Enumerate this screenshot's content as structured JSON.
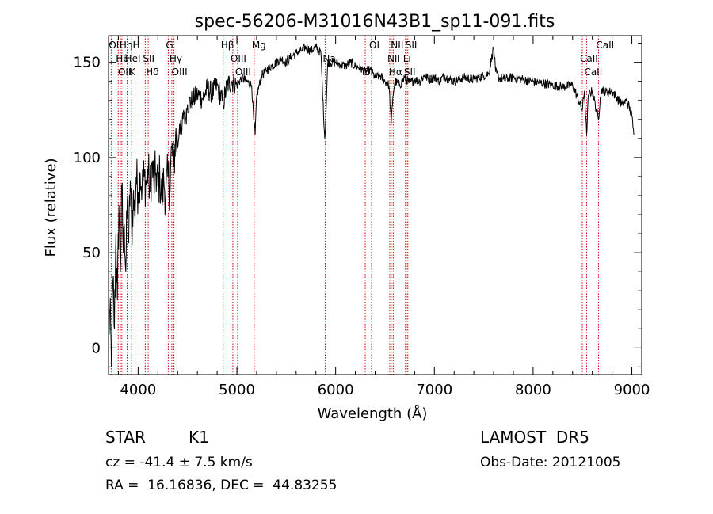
{
  "chart_data": {
    "type": "line",
    "title": "spec-56206-M31016N43B1_sp11-091.fits",
    "xlabel": "Wavelength (Å)",
    "ylabel": "Flux (relative)",
    "xlim": [
      3700,
      9100
    ],
    "ylim": [
      -14,
      164
    ],
    "x_ticks": [
      4000,
      5000,
      6000,
      7000,
      8000,
      9000
    ],
    "y_ticks": [
      0,
      50,
      100,
      150
    ],
    "x_tick_labels": [
      "4000",
      "5000",
      "6000",
      "7000",
      "8000",
      "9000"
    ],
    "y_tick_labels": [
      "0",
      "50",
      "100",
      "150"
    ],
    "grid": false,
    "series": [
      {
        "points": [
          [
            3700,
            5
          ],
          [
            3715,
            20
          ],
          [
            3730,
            -10
          ],
          [
            3745,
            35
          ],
          [
            3760,
            10
          ],
          [
            3775,
            60
          ],
          [
            3790,
            25
          ],
          [
            3805,
            75
          ],
          [
            3820,
            40
          ],
          [
            3835,
            85
          ],
          [
            3850,
            50
          ],
          [
            3860,
            65
          ],
          [
            3875,
            40
          ],
          [
            3890,
            78
          ],
          [
            3905,
            55
          ],
          [
            3920,
            88
          ],
          [
            3935,
            60
          ],
          [
            3950,
            80
          ],
          [
            3965,
            70
          ],
          [
            3980,
            90
          ],
          [
            4000,
            82
          ],
          [
            4020,
            92
          ],
          [
            4040,
            84
          ],
          [
            4060,
            90
          ],
          [
            4080,
            86
          ],
          [
            4100,
            94
          ],
          [
            4120,
            82
          ],
          [
            4140,
            96
          ],
          [
            4160,
            86
          ],
          [
            4180,
            92
          ],
          [
            4200,
            85
          ],
          [
            4220,
            90
          ],
          [
            4240,
            78
          ],
          [
            4260,
            88
          ],
          [
            4280,
            80
          ],
          [
            4300,
            90
          ],
          [
            4320,
            85
          ],
          [
            4340,
            105
          ],
          [
            4360,
            95
          ],
          [
            4380,
            112
          ],
          [
            4400,
            105
          ],
          [
            4420,
            118
          ],
          [
            4440,
            112
          ],
          [
            4460,
            125
          ],
          [
            4480,
            120
          ],
          [
            4500,
            128
          ],
          [
            4550,
            130
          ],
          [
            4600,
            133
          ],
          [
            4650,
            131
          ],
          [
            4700,
            136
          ],
          [
            4750,
            134
          ],
          [
            4800,
            138
          ],
          [
            4860,
            128
          ],
          [
            4900,
            138
          ],
          [
            4950,
            140
          ],
          [
            5000,
            138
          ],
          [
            5050,
            142
          ],
          [
            5100,
            140
          ],
          [
            5150,
            138
          ],
          [
            5170,
            120
          ],
          [
            5185,
            112
          ],
          [
            5200,
            132
          ],
          [
            5250,
            143
          ],
          [
            5300,
            146
          ],
          [
            5350,
            148
          ],
          [
            5400,
            150
          ],
          [
            5450,
            152
          ],
          [
            5500,
            150
          ],
          [
            5550,
            153
          ],
          [
            5600,
            155
          ],
          [
            5650,
            156
          ],
          [
            5700,
            158
          ],
          [
            5750,
            156
          ],
          [
            5800,
            158
          ],
          [
            5850,
            155
          ],
          [
            5890,
            110
          ],
          [
            5900,
            120
          ],
          [
            5920,
            150
          ],
          [
            6000,
            150
          ],
          [
            6050,
            149
          ],
          [
            6100,
            148
          ],
          [
            6150,
            150
          ],
          [
            6200,
            148
          ],
          [
            6250,
            147
          ],
          [
            6300,
            145
          ],
          [
            6350,
            146
          ],
          [
            6400,
            142
          ],
          [
            6450,
            143
          ],
          [
            6500,
            140
          ],
          [
            6540,
            138
          ],
          [
            6563,
            118
          ],
          [
            6580,
            132
          ],
          [
            6600,
            140
          ],
          [
            6650,
            138
          ],
          [
            6700,
            142
          ],
          [
            6750,
            139
          ],
          [
            6800,
            141
          ],
          [
            6850,
            140
          ],
          [
            6900,
            143
          ],
          [
            6950,
            141
          ],
          [
            7000,
            142
          ],
          [
            7050,
            140
          ],
          [
            7100,
            143
          ],
          [
            7150,
            141
          ],
          [
            7200,
            140
          ],
          [
            7300,
            142
          ],
          [
            7400,
            141
          ],
          [
            7500,
            143
          ],
          [
            7550,
            144
          ],
          [
            7600,
            158
          ],
          [
            7620,
            145
          ],
          [
            7650,
            142
          ],
          [
            7700,
            141
          ],
          [
            7800,
            142
          ],
          [
            7900,
            141
          ],
          [
            8000,
            140
          ],
          [
            8100,
            139
          ],
          [
            8200,
            138
          ],
          [
            8300,
            137
          ],
          [
            8400,
            138
          ],
          [
            8498,
            125
          ],
          [
            8520,
            135
          ],
          [
            8542,
            112
          ],
          [
            8560,
            133
          ],
          [
            8600,
            135
          ],
          [
            8662,
            120
          ],
          [
            8680,
            132
          ],
          [
            8700,
            136
          ],
          [
            8750,
            134
          ],
          [
            8800,
            135
          ],
          [
            8850,
            131
          ],
          [
            8900,
            128
          ],
          [
            8950,
            130
          ],
          [
            9000,
            122
          ],
          [
            9020,
            112
          ]
        ]
      }
    ],
    "line_markers": [
      {
        "wavelength": 3727,
        "label": "OII"
      },
      {
        "wavelength": 3798,
        "label": "Hθ"
      },
      {
        "wavelength": 3820,
        "label": "OII"
      },
      {
        "wavelength": 3835,
        "label": "Hη"
      },
      {
        "wavelength": 3889,
        "label": "HeI"
      },
      {
        "wavelength": 3934,
        "label": "K"
      },
      {
        "wavelength": 3969,
        "label": "H"
      },
      {
        "wavelength": 4072,
        "label": "SII"
      },
      {
        "wavelength": 4102,
        "label": "Hδ"
      },
      {
        "wavelength": 4305,
        "label": "G"
      },
      {
        "wavelength": 4341,
        "label": "Hγ"
      },
      {
        "wavelength": 4363,
        "label": "OIII"
      },
      {
        "wavelength": 4861,
        "label": "Hβ"
      },
      {
        "wavelength": 4959,
        "label": "OIII"
      },
      {
        "wavelength": 5007,
        "label": "OIII"
      },
      {
        "wavelength": 5175,
        "label": "Mg"
      },
      {
        "wavelength": 5894,
        "label": "Na"
      },
      {
        "wavelength": 6300,
        "label": "OI"
      },
      {
        "wavelength": 6364,
        "label": "OI"
      },
      {
        "wavelength": 6548,
        "label": "NII"
      },
      {
        "wavelength": 6563,
        "label": "Hα"
      },
      {
        "wavelength": 6583,
        "label": "NII"
      },
      {
        "wavelength": 6707,
        "label": "Li"
      },
      {
        "wavelength": 6716,
        "label": "SII"
      },
      {
        "wavelength": 6731,
        "label": "SII"
      },
      {
        "wavelength": 8498,
        "label": "CaII"
      },
      {
        "wavelength": 8542,
        "label": "CaII"
      },
      {
        "wavelength": 8662,
        "label": "CaII"
      }
    ],
    "marker_color": "#cc0000"
  },
  "info": {
    "class_label": "STAR",
    "subclass_label": "K1",
    "cz_text": "cz = -41.4 ± 7.5 km/s",
    "coords_text": "RA =  16.16836, DEC =  44.83255",
    "survey_label": "LAMOST  DR5",
    "obs_date_text": "Obs-Date: 20121005"
  }
}
